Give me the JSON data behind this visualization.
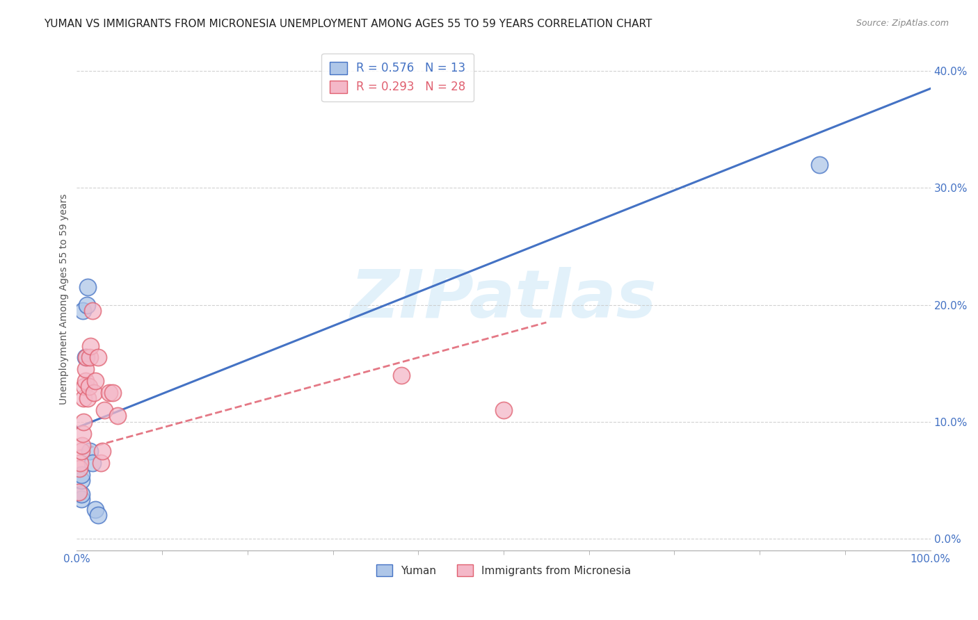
{
  "title": "YUMAN VS IMMIGRANTS FROM MICRONESIA UNEMPLOYMENT AMONG AGES 55 TO 59 YEARS CORRELATION CHART",
  "source": "Source: ZipAtlas.com",
  "xlim": [
    0.0,
    1.0
  ],
  "ylim": [
    -0.01,
    0.42
  ],
  "watermark": "ZIPatlas",
  "legend1_label": "R = 0.576   N = 13",
  "legend2_label": "R = 0.293   N = 28",
  "trendline1_color": "#4472C4",
  "trendline2_color": "#E06070",
  "scatter1_facecolor": "#aec6e8",
  "scatter1_edgecolor": "#4472C4",
  "scatter2_facecolor": "#f4b8c8",
  "scatter2_edgecolor": "#E06070",
  "yuman_x": [
    0.005,
    0.005,
    0.005,
    0.005,
    0.007,
    0.01,
    0.012,
    0.013,
    0.015,
    0.018,
    0.022,
    0.025,
    0.87
  ],
  "yuman_y": [
    0.034,
    0.038,
    0.05,
    0.055,
    0.195,
    0.155,
    0.2,
    0.215,
    0.075,
    0.065,
    0.025,
    0.02,
    0.32
  ],
  "micronesia_x": [
    0.002,
    0.003,
    0.004,
    0.005,
    0.006,
    0.007,
    0.008,
    0.008,
    0.009,
    0.01,
    0.01,
    0.011,
    0.013,
    0.014,
    0.015,
    0.016,
    0.018,
    0.02,
    0.022,
    0.025,
    0.028,
    0.03,
    0.032,
    0.038,
    0.042,
    0.048,
    0.38,
    0.5
  ],
  "micronesia_y": [
    0.04,
    0.06,
    0.065,
    0.075,
    0.08,
    0.09,
    0.1,
    0.12,
    0.13,
    0.135,
    0.145,
    0.155,
    0.12,
    0.13,
    0.155,
    0.165,
    0.195,
    0.125,
    0.135,
    0.155,
    0.065,
    0.075,
    0.11,
    0.125,
    0.125,
    0.105,
    0.14,
    0.11
  ],
  "trendline1_x0": 0.0,
  "trendline1_y0": 0.095,
  "trendline1_x1": 1.0,
  "trendline1_y1": 0.385,
  "trendline2_x0": 0.0,
  "trendline2_y0": 0.075,
  "trendline2_x1": 0.55,
  "trendline2_y1": 0.185,
  "ytick_vals": [
    0.0,
    0.1,
    0.2,
    0.3,
    0.4
  ],
  "ytick_labels": [
    "0.0%",
    "10.0%",
    "20.0%",
    "30.0%",
    "40.0%"
  ],
  "xtick_minor_count": 9,
  "grid_color": "#cccccc",
  "bg_color": "#ffffff",
  "title_fontsize": 11,
  "ylabel": "Unemployment Among Ages 55 to 59 years",
  "axis_label_color": "#4472C4"
}
